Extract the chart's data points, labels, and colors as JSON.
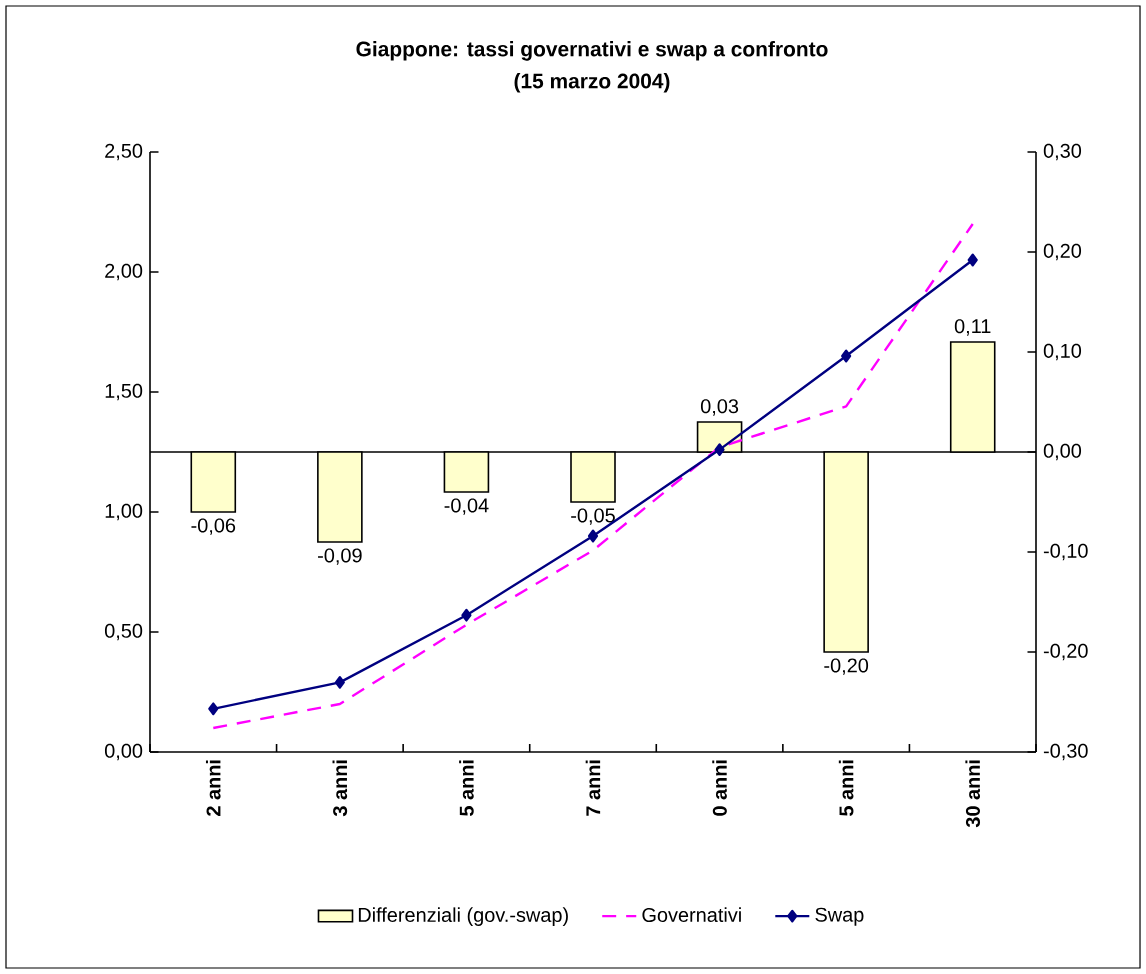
{
  "chart_data": {
    "type": "line",
    "title": "Giappone: tassi governativi e swap a confronto",
    "subtitle": "(15 marzo 2004)",
    "categories": [
      "2 anni",
      "3 anni",
      "5 anni",
      "7 anni",
      "0 anni",
      "5 anni",
      "30 anni"
    ],
    "series": [
      {
        "name": "Differenziali (gov.-swap)",
        "type": "bar",
        "axis": "y2",
        "color": "#ffffcc",
        "values": [
          -0.06,
          -0.09,
          -0.04,
          -0.05,
          0.03,
          -0.2,
          0.11
        ],
        "value_labels": [
          "-0,06",
          "-0,09",
          "-0,04",
          "-0,05",
          "0,03",
          "-0,20",
          "0,11"
        ]
      },
      {
        "name": "Governativi",
        "color": "#ff00ff",
        "line_style": "dashed",
        "marker": "none",
        "values": [
          0.1,
          0.2,
          0.53,
          0.84,
          1.27,
          1.44,
          2.2
        ]
      },
      {
        "name": "Swap",
        "color": "#000080",
        "line_style": "solid",
        "marker": "diamond",
        "values": [
          0.18,
          0.29,
          0.57,
          0.9,
          1.26,
          1.65,
          2.05
        ]
      }
    ],
    "ylim": [
      0,
      2.5
    ],
    "yticks": [
      {
        "value": 0,
        "label": "0,00"
      },
      {
        "value": 0.5,
        "label": "0,50"
      },
      {
        "value": 1,
        "label": "1,00"
      },
      {
        "value": 1.5,
        "label": "1,50"
      },
      {
        "value": 2,
        "label": "2,00"
      },
      {
        "value": 2.5,
        "label": "2,50"
      }
    ],
    "y2lim": [
      -0.3,
      0.3
    ],
    "y2ticks": [
      {
        "value": -0.3,
        "label": "-0,30"
      },
      {
        "value": -0.2,
        "label": "-0,20"
      },
      {
        "value": -0.1,
        "label": "-0,10"
      },
      {
        "value": 0,
        "label": "0,00"
      },
      {
        "value": 0.1,
        "label": "0,10"
      },
      {
        "value": 0.2,
        "label": "0,20"
      },
      {
        "value": 0.3,
        "label": "0,30"
      }
    ],
    "legend": "bottom"
  }
}
